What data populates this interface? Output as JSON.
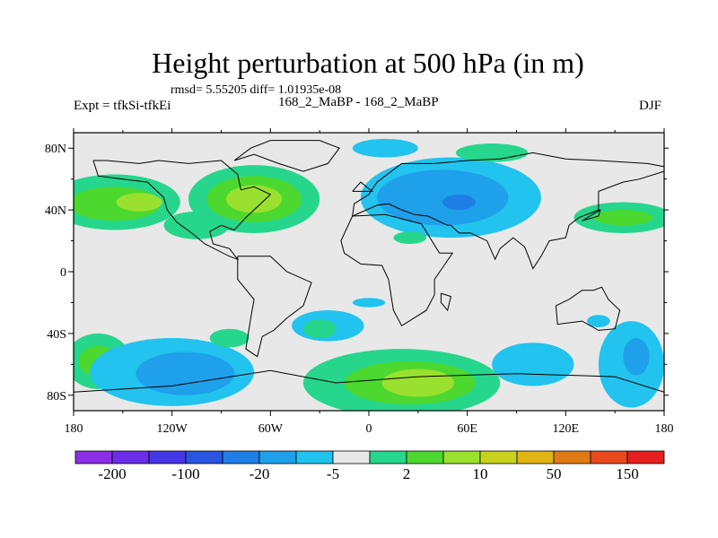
{
  "chart_data": {
    "type": "heatmap",
    "title": "Height perturbation at 500 hPa (in m)",
    "subtitle": "rmsd= 5.55205 diff= 1.01935e-08",
    "left_label": "Expt = tfkSi-tfkEi",
    "center_label": "168_2_MaBP - 168_2_MaBP",
    "right_label": "DJF",
    "xlim": [
      -180,
      180
    ],
    "ylim": [
      -90,
      90
    ],
    "x_ticks": [
      {
        "value": -180,
        "label": "180"
      },
      {
        "value": -120,
        "label": "120W"
      },
      {
        "value": -60,
        "label": "60W"
      },
      {
        "value": 0,
        "label": "0"
      },
      {
        "value": 60,
        "label": "60E"
      },
      {
        "value": 120,
        "label": "120E"
      },
      {
        "value": 180,
        "label": "180"
      }
    ],
    "y_ticks": [
      {
        "value": 80,
        "label": "80N"
      },
      {
        "value": 40,
        "label": "40N"
      },
      {
        "value": 0,
        "label": "0"
      },
      {
        "value": -40,
        "label": "40S"
      },
      {
        "value": -80,
        "label": "80S"
      }
    ],
    "colorbar": {
      "colors": [
        "#8c2ee6",
        "#6a2ee6",
        "#4638e6",
        "#2a55e0",
        "#1e7ee6",
        "#1fa0ea",
        "#22c3ee",
        "#e8e8e8",
        "#26d68c",
        "#4cd82e",
        "#9ae02e",
        "#c8d21e",
        "#e0b414",
        "#e07a14",
        "#e64a1e",
        "#e61e1e"
      ],
      "tick_labels": [
        "-200",
        "-100",
        "-20",
        "-5",
        "2",
        "10",
        "50",
        "150"
      ]
    },
    "regions": [
      {
        "lon": -70,
        "lat": 47,
        "rx": 40,
        "ry": 22,
        "level": 1
      },
      {
        "lon": -70,
        "lat": 47,
        "rx": 29,
        "ry": 15,
        "level": 2
      },
      {
        "lon": -70,
        "lat": 47,
        "rx": 17,
        "ry": 9,
        "level": 3
      },
      {
        "lon": -155,
        "lat": 45,
        "rx": 40,
        "ry": 18,
        "level": 1
      },
      {
        "lon": -155,
        "lat": 44,
        "rx": 28,
        "ry": 11,
        "level": 2
      },
      {
        "lon": -140,
        "lat": 45,
        "rx": 14,
        "ry": 6,
        "level": 3
      },
      {
        "lon": -105,
        "lat": 30,
        "rx": 20,
        "ry": 9,
        "level": 1
      },
      {
        "lon": 50,
        "lat": 48,
        "rx": 55,
        "ry": 26,
        "level": -1
      },
      {
        "lon": 45,
        "lat": 48,
        "rx": 40,
        "ry": 18,
        "level": -2
      },
      {
        "lon": 55,
        "lat": 45,
        "rx": 10,
        "ry": 5,
        "level": -3
      },
      {
        "lon": 10,
        "lat": 80,
        "rx": 20,
        "ry": 6,
        "level": -1
      },
      {
        "lon": 75,
        "lat": 77,
        "rx": 22,
        "ry": 6,
        "level": 1
      },
      {
        "lon": 155,
        "lat": 35,
        "rx": 30,
        "ry": 10,
        "level": 1
      },
      {
        "lon": 155,
        "lat": 35,
        "rx": 18,
        "ry": 5,
        "level": 2
      },
      {
        "lon": 25,
        "lat": 22,
        "rx": 10,
        "ry": 4,
        "level": 1
      },
      {
        "lon": -165,
        "lat": -58,
        "rx": 20,
        "ry": 18,
        "level": 1
      },
      {
        "lon": -165,
        "lat": -58,
        "rx": 12,
        "ry": 10,
        "level": 2
      },
      {
        "lon": -120,
        "lat": -65,
        "rx": 50,
        "ry": 22,
        "level": -1
      },
      {
        "lon": -112,
        "lat": -66,
        "rx": 30,
        "ry": 14,
        "level": -2
      },
      {
        "lon": -85,
        "lat": -43,
        "rx": 12,
        "ry": 6,
        "level": 1
      },
      {
        "lon": -25,
        "lat": -35,
        "rx": 22,
        "ry": 10,
        "level": -1
      },
      {
        "lon": -30,
        "lat": -37,
        "rx": 10,
        "ry": 6,
        "level": 1
      },
      {
        "lon": 20,
        "lat": -72,
        "rx": 60,
        "ry": 22,
        "level": 1
      },
      {
        "lon": 25,
        "lat": -72,
        "rx": 40,
        "ry": 14,
        "level": 2
      },
      {
        "lon": 30,
        "lat": -72,
        "rx": 22,
        "ry": 9,
        "level": 3
      },
      {
        "lon": 100,
        "lat": -60,
        "rx": 25,
        "ry": 14,
        "level": -1
      },
      {
        "lon": 160,
        "lat": -60,
        "rx": 20,
        "ry": 28,
        "level": -1
      },
      {
        "lon": 163,
        "lat": -55,
        "rx": 8,
        "ry": 12,
        "level": -2
      },
      {
        "lon": 140,
        "lat": -32,
        "rx": 7,
        "ry": 4,
        "level": -1
      },
      {
        "lon": 0,
        "lat": -20,
        "rx": 10,
        "ry": 3,
        "level": -1
      }
    ],
    "coastlines": [
      [
        [
          -82,
          72
        ],
        [
          -72,
          80
        ],
        [
          -60,
          85
        ],
        [
          -30,
          85
        ],
        [
          -18,
          80
        ],
        [
          -25,
          70
        ],
        [
          -40,
          65
        ],
        [
          -55,
          70
        ],
        [
          -70,
          76
        ],
        [
          -82,
          72
        ]
      ],
      [
        [
          -168,
          72
        ],
        [
          -160,
          72
        ],
        [
          -140,
          70
        ],
        [
          -128,
          72
        ],
        [
          -110,
          70
        ],
        [
          -90,
          72
        ],
        [
          -80,
          63
        ],
        [
          -78,
          53
        ],
        [
          -70,
          55
        ],
        [
          -60,
          50
        ],
        [
          -65,
          45
        ],
        [
          -75,
          35
        ],
        [
          -82,
          27
        ],
        [
          -90,
          30
        ],
        [
          -97,
          26
        ],
        [
          -95,
          18
        ],
        [
          -85,
          15
        ],
        [
          -80,
          8
        ],
        [
          -85,
          10
        ],
        [
          -100,
          18
        ],
        [
          -108,
          25
        ],
        [
          -117,
          32
        ],
        [
          -123,
          40
        ],
        [
          -125,
          48
        ],
        [
          -135,
          58
        ],
        [
          -150,
          60
        ],
        [
          -165,
          62
        ],
        [
          -168,
          72
        ]
      ],
      [
        [
          -80,
          10
        ],
        [
          -60,
          10
        ],
        [
          -50,
          0
        ],
        [
          -35,
          -7
        ],
        [
          -40,
          -22
        ],
        [
          -50,
          -30
        ],
        [
          -58,
          -38
        ],
        [
          -65,
          -42
        ],
        [
          -68,
          -55
        ],
        [
          -75,
          -50
        ],
        [
          -72,
          -30
        ],
        [
          -70,
          -18
        ],
        [
          -80,
          -5
        ],
        [
          -80,
          10
        ]
      ],
      [
        [
          -10,
          36
        ],
        [
          10,
          37
        ],
        [
          32,
          31
        ],
        [
          43,
          12
        ],
        [
          51,
          12
        ],
        [
          40,
          -5
        ],
        [
          40,
          -15
        ],
        [
          35,
          -25
        ],
        [
          20,
          -35
        ],
        [
          15,
          -25
        ],
        [
          12,
          -5
        ],
        [
          8,
          4
        ],
        [
          -5,
          5
        ],
        [
          -15,
          12
        ],
        [
          -17,
          20
        ],
        [
          -10,
          36
        ]
      ],
      [
        [
          -10,
          36
        ],
        [
          -9,
          44
        ],
        [
          0,
          50
        ],
        [
          5,
          58
        ],
        [
          10,
          62
        ],
        [
          20,
          70
        ],
        [
          40,
          70
        ],
        [
          60,
          72
        ],
        [
          80,
          73
        ],
        [
          100,
          77
        ],
        [
          120,
          73
        ],
        [
          140,
          72
        ],
        [
          170,
          70
        ],
        [
          180,
          68
        ],
        [
          180,
          65
        ],
        [
          165,
          60
        ],
        [
          155,
          58
        ],
        [
          140,
          52
        ],
        [
          140,
          40
        ],
        [
          128,
          35
        ],
        [
          122,
          30
        ],
        [
          120,
          22
        ],
        [
          110,
          20
        ],
        [
          105,
          10
        ],
        [
          100,
          2
        ],
        [
          98,
          8
        ],
        [
          95,
          16
        ],
        [
          88,
          22
        ],
        [
          80,
          15
        ],
        [
          77,
          8
        ],
        [
          72,
          20
        ],
        [
          62,
          25
        ],
        [
          55,
          25
        ],
        [
          50,
          30
        ],
        [
          48,
          30
        ],
        [
          36,
          36
        ],
        [
          28,
          37
        ],
        [
          20,
          40
        ],
        [
          12,
          44
        ],
        [
          5,
          43
        ],
        [
          -10,
          36
        ]
      ],
      [
        [
          114,
          -22
        ],
        [
          122,
          -18
        ],
        [
          130,
          -12
        ],
        [
          137,
          -12
        ],
        [
          142,
          -10
        ],
        [
          146,
          -18
        ],
        [
          153,
          -25
        ],
        [
          150,
          -37
        ],
        [
          140,
          -38
        ],
        [
          130,
          -32
        ],
        [
          115,
          -34
        ],
        [
          114,
          -22
        ]
      ],
      [
        [
          -180,
          -78
        ],
        [
          -120,
          -74
        ],
        [
          -60,
          -64
        ],
        [
          -20,
          -72
        ],
        [
          30,
          -68
        ],
        [
          90,
          -66
        ],
        [
          150,
          -68
        ],
        [
          180,
          -78
        ]
      ],
      [
        [
          44,
          -14
        ],
        [
          50,
          -16
        ],
        [
          48,
          -25
        ],
        [
          44,
          -20
        ],
        [
          44,
          -14
        ]
      ],
      [
        [
          -10,
          52
        ],
        [
          -5,
          58
        ],
        [
          2,
          52
        ],
        [
          -10,
          52
        ]
      ],
      [
        [
          130,
          33
        ],
        [
          141,
          40
        ],
        [
          140,
          36
        ],
        [
          130,
          33
        ]
      ]
    ]
  }
}
